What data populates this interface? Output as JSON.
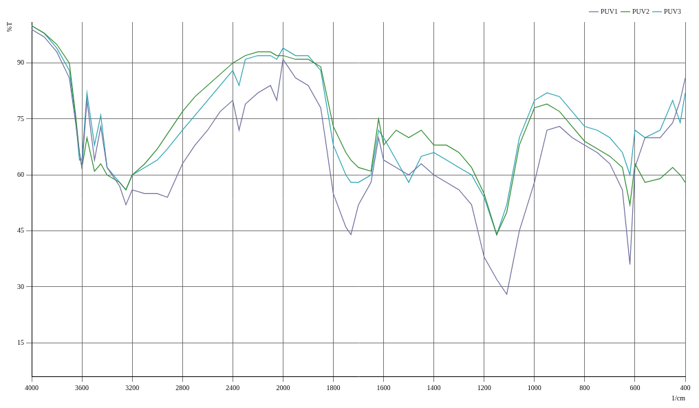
{
  "chart_data": {
    "type": "line",
    "x_label": "1/cm",
    "y_label": "%T",
    "x": [
      4000,
      3900,
      3800,
      3700,
      3650,
      3620,
      3600,
      3560,
      3500,
      3450,
      3400,
      3300,
      3250,
      3200,
      3100,
      3000,
      2920,
      2800,
      2700,
      2600,
      2500,
      2400,
      2350,
      2300,
      2200,
      2100,
      2050,
      2000,
      1950,
      1900,
      1850,
      1800,
      1750,
      1730,
      1700,
      1650,
      1620,
      1600,
      1550,
      1500,
      1450,
      1400,
      1350,
      1300,
      1250,
      1200,
      1150,
      1110,
      1060,
      1000,
      950,
      900,
      850,
      800,
      750,
      700,
      650,
      620,
      600,
      560,
      500,
      450,
      420,
      400
    ],
    "series": [
      {
        "name": "PUV1",
        "color": "#6e6e9e",
        "values": [
          99,
          97,
          93,
          86,
          74,
          66,
          62,
          80,
          64,
          73,
          62,
          57,
          52,
          56,
          55,
          55,
          54,
          63,
          68,
          72,
          77,
          80,
          72,
          79,
          82,
          84,
          80,
          91,
          86,
          84,
          78,
          55,
          46,
          44,
          52,
          58,
          70,
          64,
          62,
          60,
          63,
          60,
          58,
          56,
          52,
          38,
          32,
          28,
          45,
          58,
          72,
          73,
          70,
          68,
          66,
          63,
          56,
          36,
          62,
          70,
          70,
          74,
          80,
          86
        ]
      },
      {
        "name": "PUV2",
        "color": "#2e8b2e",
        "values": [
          100,
          98,
          95,
          90,
          76,
          66,
          62,
          70,
          61,
          63,
          60,
          58,
          56,
          60,
          63,
          67,
          71,
          77,
          81,
          84,
          87,
          90,
          91,
          92,
          93,
          93,
          92,
          92,
          91,
          91,
          89,
          73,
          66,
          64,
          62,
          61,
          75,
          68,
          72,
          70,
          72,
          68,
          68,
          66,
          62,
          55,
          44,
          50,
          68,
          78,
          79,
          77,
          73,
          69,
          67,
          65,
          62,
          52,
          63,
          58,
          59,
          62,
          60,
          58
        ]
      },
      {
        "name": "PUV3",
        "color": "#29a3b3",
        "values": [
          100,
          98,
          94,
          88,
          75,
          64,
          64,
          82,
          68,
          76,
          62,
          58,
          56,
          60,
          62,
          64,
          67,
          72,
          76,
          80,
          84,
          88,
          84,
          91,
          92,
          92,
          91,
          94,
          92,
          92,
          88,
          68,
          60,
          58,
          58,
          60,
          72,
          70,
          64,
          58,
          65,
          66,
          64,
          62,
          60,
          54,
          44,
          52,
          70,
          80,
          82,
          81,
          77,
          73,
          72,
          70,
          66,
          60,
          72,
          70,
          72,
          80,
          74,
          82
        ]
      }
    ],
    "xlim": [
      4000,
      400
    ],
    "xticks": [
      4000,
      3600,
      3200,
      2800,
      2400,
      2000,
      1800,
      1600,
      1400,
      1200,
      1000,
      800,
      600,
      400
    ],
    "ylim": [
      6,
      101
    ],
    "yticks": [
      15,
      30,
      45,
      60,
      75,
      90
    ],
    "grid": true,
    "legend": "top-right"
  }
}
